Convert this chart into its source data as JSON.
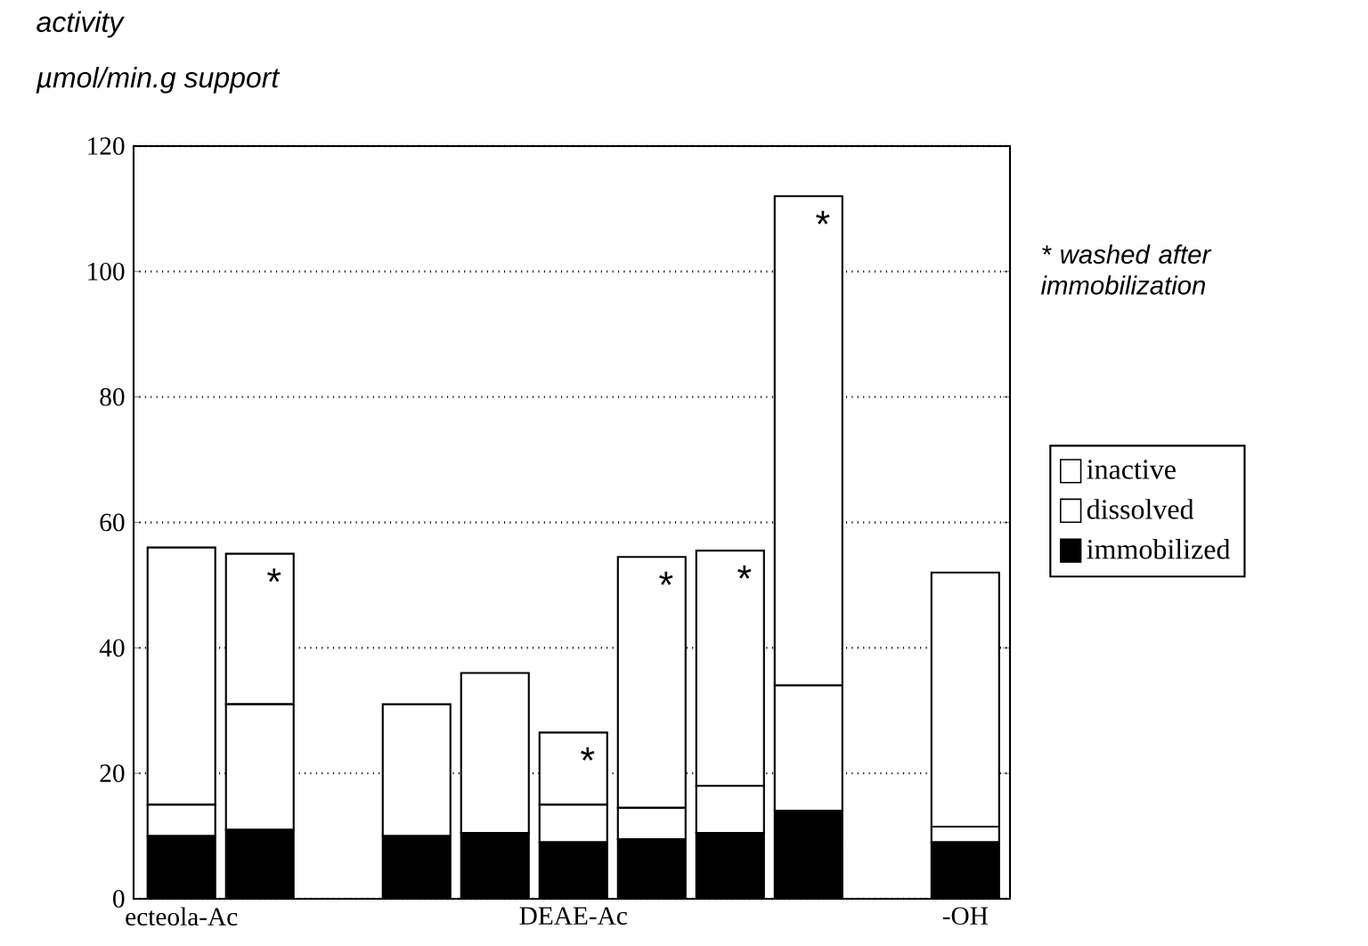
{
  "chart_data": {
    "type": "bar",
    "stacked": true,
    "title": "activity",
    "ylabel": "µmol/min.g support",
    "categories": [
      "ecteola-Ac",
      null,
      null,
      null,
      null,
      "DEAE-Ac",
      null,
      null,
      null,
      null,
      "-OH"
    ],
    "series": [
      {
        "name": "immobilized",
        "color": "#000000",
        "values": [
          10,
          11,
          null,
          10,
          10.5,
          9,
          9.5,
          10.5,
          14,
          null,
          9
        ]
      },
      {
        "name": "dissolved",
        "color": "#ffffff",
        "values": [
          5,
          20,
          null,
          0,
          0,
          6,
          5,
          7.5,
          20,
          null,
          2.5
        ]
      },
      {
        "name": "inactive",
        "color": "#ffffff",
        "values": [
          41,
          24,
          null,
          21,
          25.5,
          11.5,
          40,
          37.5,
          78,
          null,
          40.5
        ],
        "value_labels": [
          null,
          "*",
          null,
          null,
          null,
          "*",
          "*",
          "*",
          "*",
          null,
          null
        ]
      }
    ],
    "ylim": [
      0,
      120
    ],
    "yticks": [
      0,
      20,
      40,
      60,
      80,
      100,
      120
    ],
    "grid": "y",
    "legend": "right",
    "annotations": [
      "* washed after immobilization"
    ]
  }
}
